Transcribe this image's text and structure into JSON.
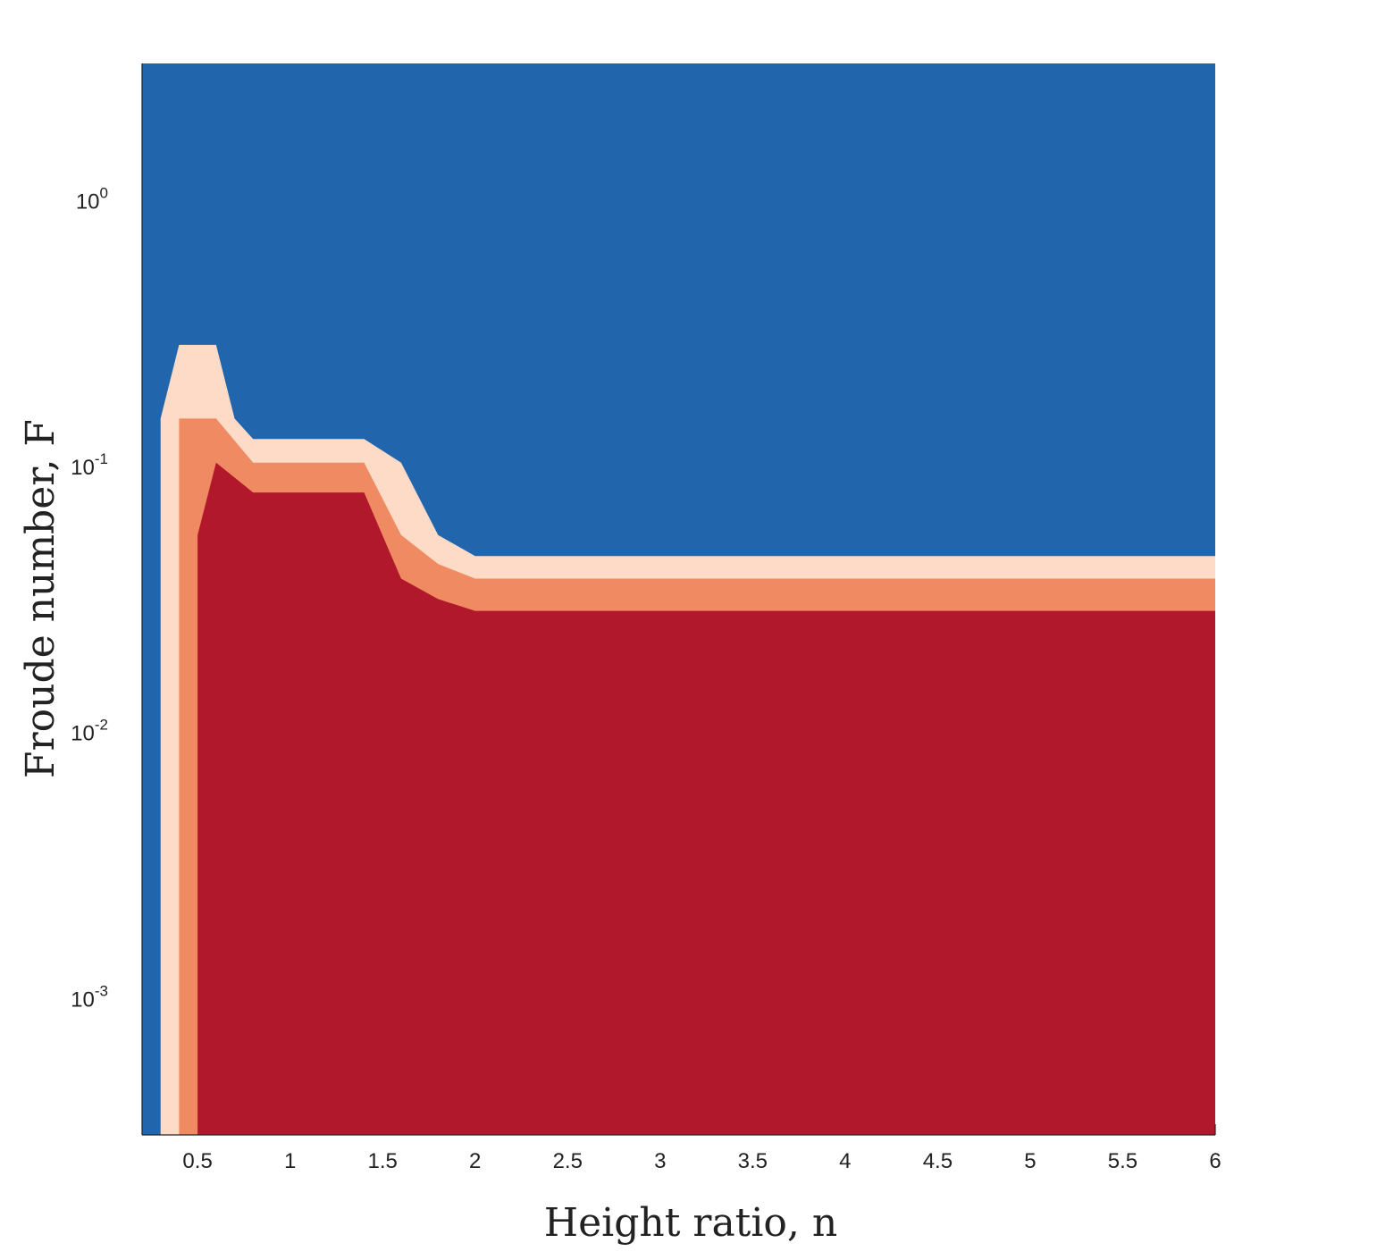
{
  "chart_data": {
    "type": "area",
    "xlabel": "Height ratio, n",
    "ylabel": "Froude number, F",
    "xlim": [
      0.2,
      6
    ],
    "ylim": [
      0.0003,
      3.2
    ],
    "yscale": "log",
    "grid": false,
    "x_ticks": [
      "0.5",
      "1",
      "1.5",
      "2",
      "2.5",
      "3",
      "3.5",
      "4",
      "4.5",
      "5",
      "5.5",
      "6"
    ],
    "x_tick_values": [
      0.5,
      1,
      1.5,
      2,
      2.5,
      3,
      3.5,
      4,
      4.5,
      5,
      5.5,
      6
    ],
    "y_ticks": [
      {
        "base": "10",
        "exp": "0",
        "value": 1
      },
      {
        "base": "10",
        "exp": "-1",
        "value": 0.1
      },
      {
        "base": "10",
        "exp": "-2",
        "value": 0.01
      },
      {
        "base": "10",
        "exp": "-3",
        "value": 0.001
      }
    ],
    "background_color": "#2166ac",
    "series": [
      {
        "color": "#fddbc7",
        "x": [
          0.3,
          0.4,
          0.6,
          0.7,
          0.8,
          1.4,
          1.6,
          1.8,
          2.0,
          6.0
        ],
        "upper": [
          0.148,
          0.28,
          0.28,
          0.148,
          0.124,
          0.124,
          0.101,
          0.054,
          0.045,
          0.045
        ]
      },
      {
        "color": "#ef8a62",
        "x": [
          0.4,
          0.6,
          0.8,
          1.4,
          1.6,
          1.8,
          2.0,
          6.0
        ],
        "upper": [
          0.148,
          0.148,
          0.101,
          0.101,
          0.054,
          0.042,
          0.037,
          0.037
        ]
      },
      {
        "color": "#b2182b",
        "x": [
          0.5,
          0.6,
          0.8,
          1.4,
          1.6,
          1.8,
          2.0,
          6.0
        ],
        "upper": [
          0.054,
          0.101,
          0.078,
          0.078,
          0.037,
          0.031,
          0.028,
          0.028
        ]
      }
    ]
  }
}
